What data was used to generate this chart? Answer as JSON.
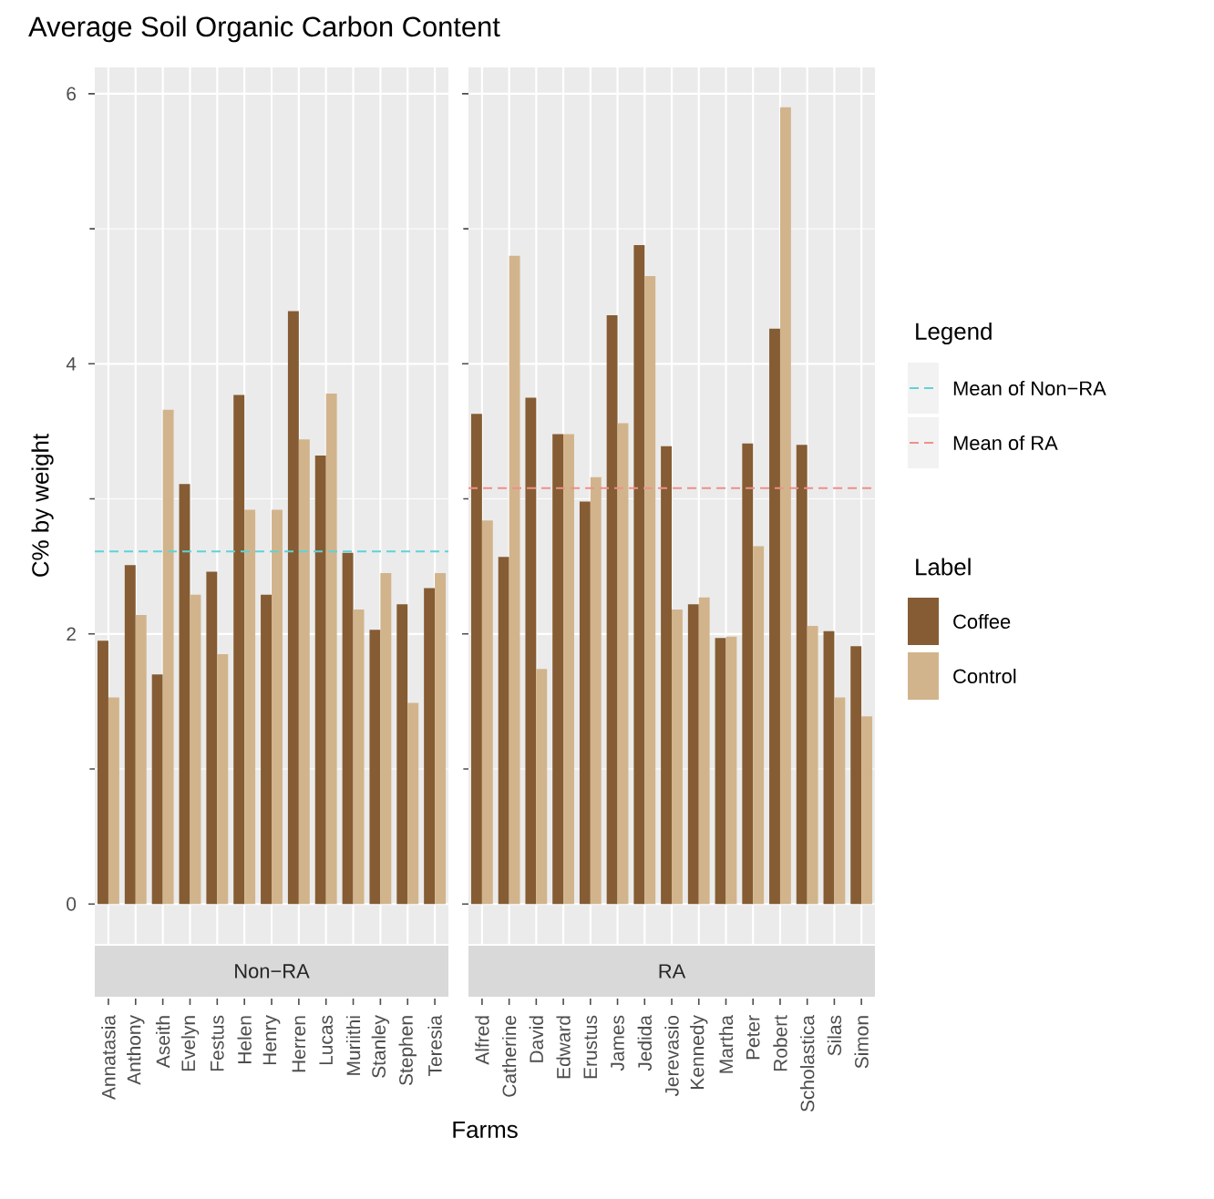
{
  "chart_data": [
    {
      "type": "bar",
      "title": "Average Soil Organic Carbon Content",
      "subtitle": "Non−RA",
      "xlabel": "Farms",
      "ylabel": "C% by weight",
      "legend_title": "Label",
      "categories": [
        "Annatasia",
        "Anthony",
        "Aseith",
        "Evelyn",
        "Festus",
        "Helen",
        "Henry",
        "Herren",
        "Lucas",
        "Muriithi",
        "Stanley",
        "Stephen",
        "Teresia"
      ],
      "series": [
        {
          "name": "Coffee",
          "color": "#855c33",
          "values": [
            1.95,
            2.51,
            1.7,
            3.11,
            2.46,
            3.77,
            2.29,
            4.39,
            3.32,
            2.6,
            2.03,
            2.22,
            2.34
          ]
        },
        {
          "name": "Control",
          "color": "#d2b48c",
          "values": [
            1.53,
            2.14,
            3.66,
            2.29,
            1.85,
            2.92,
            2.92,
            3.44,
            3.78,
            2.18,
            2.45,
            1.49,
            2.45
          ]
        }
      ],
      "ref_lines": [
        {
          "axis": "y",
          "value": 2.61,
          "label": "Mean of Non−RA",
          "color": "#5fd3d6",
          "line_style": "dashed"
        }
      ],
      "ylim": [
        -0.295,
        6.195
      ],
      "yticks": [
        0,
        2,
        4,
        6
      ],
      "grid": true,
      "legend": "right"
    },
    {
      "type": "bar",
      "subtitle": "RA",
      "legend_title": "Legend",
      "categories": [
        "Alfred",
        "Catherine",
        "David",
        "Edward",
        "Erustus",
        "James",
        "Jedida",
        "Jerevasio",
        "Kennedy",
        "Martha",
        "Peter",
        "Robert",
        "Scholastica",
        "Silas",
        "Simon"
      ],
      "series": [
        {
          "color": "#855c33",
          "values": [
            3.63,
            2.57,
            3.75,
            3.48,
            2.98,
            4.36,
            4.88,
            3.39,
            2.22,
            1.97,
            3.41,
            4.26,
            3.4,
            2.02,
            1.91
          ]
        },
        {
          "color": "#d2b48c",
          "values": [
            2.84,
            4.8,
            1.74,
            3.48,
            3.16,
            3.56,
            4.65,
            2.18,
            2.27,
            1.98,
            2.65,
            5.9,
            2.06,
            1.53,
            1.39
          ]
        }
      ],
      "ref_lines": [
        {
          "axis": "y",
          "value": 3.08,
          "label": "Mean of RA",
          "color": "#ef8f8a",
          "line_style": "dashed"
        }
      ],
      "ylim": [
        -0.295,
        6.195
      ],
      "yticks": [
        0,
        2,
        4,
        6
      ],
      "grid": true,
      "legend": "right",
      "tick_labels": "x"
    }
  ]
}
